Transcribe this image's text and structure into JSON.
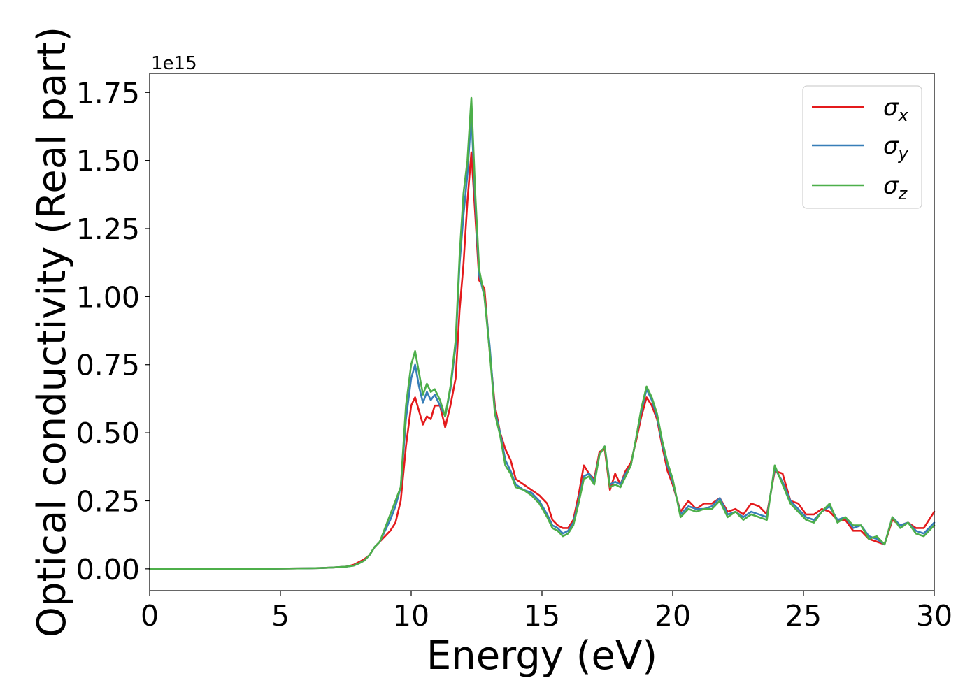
{
  "chart_data": {
    "type": "line",
    "title": "",
    "xlabel": "Energy (eV)",
    "ylabel": "Optical conductivity (Real part)",
    "y_offset_label": "1e15",
    "y_scale_factor": 1000000000000000.0,
    "xlim": [
      0,
      30
    ],
    "ylim": [
      -0.08,
      1.82
    ],
    "x_ticks": [
      0,
      5,
      10,
      15,
      20,
      25,
      30
    ],
    "x_tick_labels": [
      "0",
      "5",
      "10",
      "15",
      "20",
      "25",
      "30"
    ],
    "y_ticks": [
      0.0,
      0.25,
      0.5,
      0.75,
      1.0,
      1.25,
      1.5,
      1.75
    ],
    "y_tick_labels": [
      "0.00",
      "0.25",
      "0.50",
      "0.75",
      "1.00",
      "1.25",
      "1.50",
      "1.75"
    ],
    "grid": false,
    "legend_position": "top-right",
    "x": [
      0,
      1,
      2,
      3,
      4,
      5,
      6,
      6.5,
      7,
      7.5,
      7.8,
      8.0,
      8.2,
      8.4,
      8.6,
      8.8,
      9.0,
      9.2,
      9.4,
      9.6,
      9.8,
      10.0,
      10.15,
      10.3,
      10.45,
      10.6,
      10.75,
      10.9,
      11.1,
      11.3,
      11.5,
      11.7,
      11.85,
      12.0,
      12.15,
      12.3,
      12.45,
      12.6,
      12.8,
      13.0,
      13.2,
      13.4,
      13.6,
      13.8,
      14.0,
      14.3,
      14.6,
      14.9,
      15.2,
      15.4,
      15.6,
      15.8,
      16.0,
      16.2,
      16.4,
      16.6,
      16.8,
      17.0,
      17.2,
      17.4,
      17.6,
      17.8,
      18.0,
      18.2,
      18.4,
      18.6,
      18.8,
      19.0,
      19.2,
      19.4,
      19.6,
      19.8,
      20.0,
      20.3,
      20.6,
      20.9,
      21.2,
      21.5,
      21.8,
      22.1,
      22.4,
      22.7,
      23.0,
      23.3,
      23.6,
      23.9,
      24.2,
      24.5,
      24.8,
      25.1,
      25.4,
      25.7,
      26.0,
      26.3,
      26.6,
      26.9,
      27.2,
      27.5,
      27.8,
      28.1,
      28.4,
      28.7,
      29.0,
      29.3,
      29.6,
      30.0
    ],
    "series": [
      {
        "name": "σx",
        "color": "#e41a1c",
        "values": [
          0,
          0,
          0,
          0,
          0,
          0.001,
          0.002,
          0.003,
          0.005,
          0.008,
          0.015,
          0.025,
          0.035,
          0.05,
          0.08,
          0.1,
          0.12,
          0.14,
          0.17,
          0.25,
          0.45,
          0.6,
          0.63,
          0.58,
          0.53,
          0.56,
          0.55,
          0.6,
          0.6,
          0.52,
          0.6,
          0.7,
          0.95,
          1.12,
          1.35,
          1.53,
          1.3,
          1.06,
          1.03,
          0.8,
          0.6,
          0.5,
          0.44,
          0.4,
          0.33,
          0.31,
          0.29,
          0.27,
          0.24,
          0.18,
          0.16,
          0.15,
          0.15,
          0.18,
          0.27,
          0.38,
          0.35,
          0.33,
          0.43,
          0.44,
          0.29,
          0.35,
          0.31,
          0.36,
          0.39,
          0.47,
          0.56,
          0.63,
          0.6,
          0.55,
          0.45,
          0.36,
          0.31,
          0.21,
          0.25,
          0.22,
          0.24,
          0.24,
          0.26,
          0.21,
          0.22,
          0.2,
          0.24,
          0.23,
          0.2,
          0.36,
          0.35,
          0.25,
          0.24,
          0.2,
          0.2,
          0.22,
          0.21,
          0.18,
          0.18,
          0.14,
          0.14,
          0.11,
          0.1,
          0.09,
          0.18,
          0.16,
          0.17,
          0.15,
          0.15,
          0.21
        ]
      },
      {
        "name": "σy",
        "color": "#377eb8",
        "values": [
          0,
          0,
          0,
          0,
          0,
          0.001,
          0.002,
          0.003,
          0.005,
          0.008,
          0.012,
          0.02,
          0.03,
          0.05,
          0.08,
          0.1,
          0.14,
          0.18,
          0.23,
          0.3,
          0.55,
          0.7,
          0.75,
          0.67,
          0.61,
          0.65,
          0.62,
          0.64,
          0.6,
          0.56,
          0.66,
          0.82,
          1.12,
          1.3,
          1.45,
          1.67,
          1.35,
          1.08,
          1.0,
          0.82,
          0.58,
          0.5,
          0.4,
          0.36,
          0.31,
          0.29,
          0.28,
          0.25,
          0.2,
          0.16,
          0.15,
          0.13,
          0.14,
          0.17,
          0.25,
          0.34,
          0.35,
          0.32,
          0.42,
          0.45,
          0.31,
          0.32,
          0.31,
          0.35,
          0.38,
          0.48,
          0.58,
          0.66,
          0.62,
          0.56,
          0.46,
          0.38,
          0.32,
          0.2,
          0.23,
          0.22,
          0.22,
          0.23,
          0.26,
          0.2,
          0.21,
          0.19,
          0.21,
          0.2,
          0.19,
          0.37,
          0.32,
          0.25,
          0.22,
          0.19,
          0.18,
          0.21,
          0.23,
          0.18,
          0.19,
          0.15,
          0.16,
          0.12,
          0.11,
          0.09,
          0.19,
          0.16,
          0.17,
          0.14,
          0.13,
          0.17
        ]
      },
      {
        "name": "σz",
        "color": "#4daf4a",
        "values": [
          0,
          0,
          0,
          0,
          0,
          0.001,
          0.002,
          0.003,
          0.005,
          0.008,
          0.012,
          0.02,
          0.03,
          0.05,
          0.08,
          0.1,
          0.15,
          0.2,
          0.25,
          0.3,
          0.6,
          0.75,
          0.8,
          0.72,
          0.64,
          0.68,
          0.65,
          0.66,
          0.62,
          0.56,
          0.67,
          0.84,
          1.15,
          1.38,
          1.5,
          1.73,
          1.38,
          1.1,
          1.0,
          0.8,
          0.57,
          0.49,
          0.38,
          0.35,
          0.3,
          0.29,
          0.27,
          0.24,
          0.19,
          0.15,
          0.14,
          0.12,
          0.13,
          0.16,
          0.24,
          0.33,
          0.34,
          0.31,
          0.42,
          0.45,
          0.3,
          0.31,
          0.3,
          0.34,
          0.38,
          0.48,
          0.59,
          0.67,
          0.63,
          0.57,
          0.47,
          0.39,
          0.33,
          0.19,
          0.22,
          0.21,
          0.22,
          0.22,
          0.25,
          0.19,
          0.21,
          0.18,
          0.2,
          0.19,
          0.18,
          0.38,
          0.31,
          0.24,
          0.21,
          0.18,
          0.17,
          0.21,
          0.24,
          0.17,
          0.19,
          0.16,
          0.16,
          0.11,
          0.12,
          0.09,
          0.19,
          0.15,
          0.17,
          0.13,
          0.12,
          0.16
        ]
      }
    ]
  }
}
